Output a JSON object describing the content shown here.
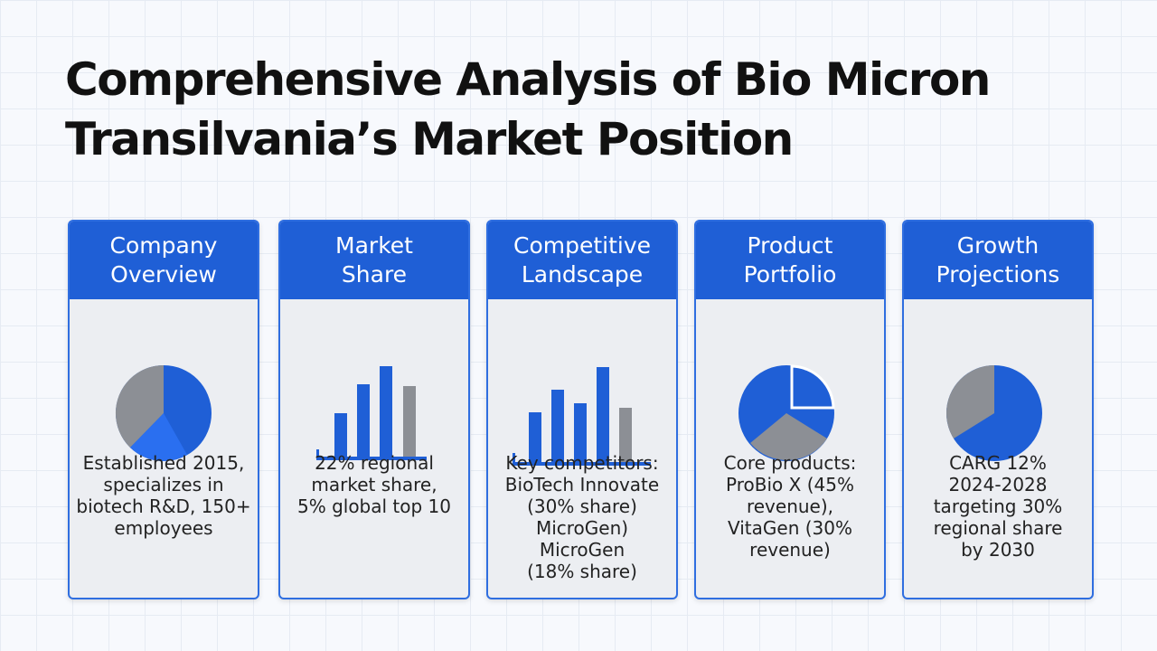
{
  "header": {
    "title_lines": [
      "Comprehensive Analysis of Bio Micron",
      "Transilvania’s Market Position"
    ]
  },
  "cards": [
    {
      "title_lines": [
        "Company",
        "Overview"
      ],
      "body_lines": [
        "Established 2015,",
        "specializes in",
        "biotech R&D, 150+",
        "employees"
      ]
    },
    {
      "title_lines": [
        "Market",
        "Share"
      ],
      "body_lines": [
        "22% regional",
        "market share,",
        "5% global top 10"
      ]
    },
    {
      "title_lines": [
        "Competitive",
        "Landscape"
      ],
      "body_lines": [
        "Key competitors:",
        "BioTech Innovate",
        "(30% share)",
        "MicroGen)",
        "MicroGen",
        "(18% share)"
      ]
    },
    {
      "title_lines": [
        "Product",
        "Portfolio"
      ],
      "body_lines": [
        "Core products:",
        "ProBio X (45%",
        "revenue),",
        "VitaGen (30%",
        "revenue)"
      ]
    },
    {
      "title_lines": [
        "Growth",
        "Projections"
      ],
      "body_lines": [
        "CARG 12%",
        "2024-2028",
        "targeting 30%",
        "regional share",
        "by 2030"
      ]
    }
  ]
}
